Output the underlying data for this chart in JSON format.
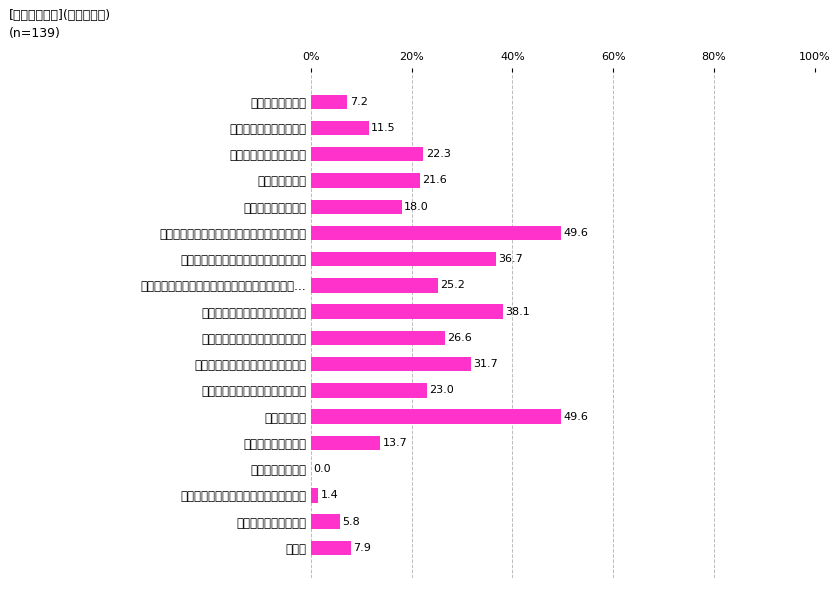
{
  "title_line1": "[悩みについて](複数回答可)",
  "title_line2": "(n=139)",
  "categories": [
    "上司との人間関係",
    "同僚や部下との人間関係",
    "パートナーとの人間関係",
    "親との人間関係",
    "子どもとの人間関係",
    "やろうと思うことが、なかなか行動化できない",
    "自分の強みや才能がはっきりわからない",
    "他の活蹍している起業家や同僚と自分を比較して…",
    "自分のキャリアに満足していない",
    "自分のやりたいことが分からない",
    "自分のやりたいことがやれていない",
    "健康の悩み（からだの不調など）",
    "経済的な悩み",
    "パートナーがいない",
    "子どもができない",
    "パートナーや子どもをほしいと思わない",
    "親の介護に関する悩み",
    "その他"
  ],
  "values": [
    7.2,
    11.5,
    22.3,
    21.6,
    18.0,
    49.6,
    36.7,
    25.2,
    38.1,
    26.6,
    31.7,
    23.0,
    49.6,
    13.7,
    0.0,
    1.4,
    5.8,
    7.9
  ],
  "bar_color": "#FF33CC",
  "background_color": "#FFFFFF",
  "xlim": [
    0,
    100
  ],
  "xticks": [
    0,
    20,
    40,
    60,
    80,
    100
  ],
  "xticklabels": [
    "0%",
    "20%",
    "40%",
    "60%",
    "80%",
    "100%"
  ],
  "grid_color": "#BBBBBB",
  "label_fontsize": 8.5,
  "tick_fontsize": 8,
  "value_fontsize": 8,
  "title_fontsize": 9
}
